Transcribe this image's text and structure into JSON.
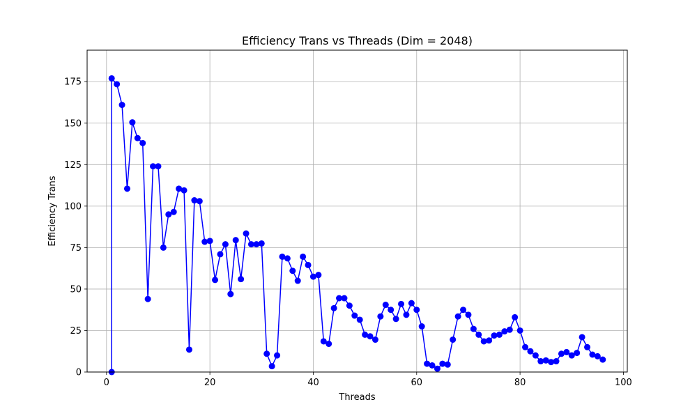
{
  "chart_data": {
    "type": "line",
    "title": "Efficiency Trans vs Threads (Dim = 2048)",
    "xlabel": "Threads",
    "ylabel": "Efficiency Trans",
    "xlim": [
      -3.75,
      100.75
    ],
    "ylim": [
      0,
      194
    ],
    "xticks": [
      0,
      20,
      40,
      60,
      80,
      100
    ],
    "yticks": [
      0,
      25,
      50,
      75,
      100,
      125,
      150,
      175
    ],
    "grid": true,
    "series": [
      {
        "color": "#0000ff",
        "marker": "circle",
        "x": [
          1,
          1,
          2,
          3,
          4,
          5,
          6,
          7,
          8,
          9,
          10,
          11,
          12,
          13,
          14,
          15,
          16,
          17,
          18,
          19,
          20,
          21,
          22,
          23,
          24,
          25,
          26,
          27,
          28,
          29,
          30,
          31,
          32,
          33,
          34,
          35,
          36,
          37,
          38,
          39,
          40,
          41,
          42,
          43,
          44,
          45,
          46,
          47,
          48,
          49,
          50,
          51,
          52,
          53,
          54,
          55,
          56,
          57,
          58,
          59,
          60,
          61,
          62,
          63,
          64,
          65,
          66,
          67,
          68,
          69,
          70,
          71,
          72,
          73,
          74,
          75,
          76,
          77,
          78,
          79,
          80,
          81,
          82,
          83,
          84,
          85,
          86,
          87,
          88,
          89,
          90,
          91,
          92,
          93,
          94,
          95,
          96
        ],
        "y": [
          0,
          177,
          173.5,
          161,
          110.5,
          150.5,
          141,
          138,
          44,
          124,
          124,
          75,
          95,
          96.5,
          110.5,
          109.5,
          13.5,
          103.5,
          103,
          78.5,
          79,
          55.5,
          71,
          77,
          47,
          79.5,
          56,
          83.5,
          77,
          77,
          77.5,
          11,
          3.5,
          10,
          69.5,
          68.5,
          61,
          55,
          69.5,
          64.5,
          57.5,
          58.5,
          18.5,
          17,
          38.5,
          44.5,
          44.5,
          40,
          34,
          31.5,
          22.5,
          21.5,
          19.5,
          33.5,
          40.5,
          37.5,
          32,
          41,
          34.5,
          41.5,
          37.5,
          27.5,
          5,
          4,
          2,
          5,
          4.5,
          19.5,
          33.5,
          37.5,
          34.5,
          26,
          22.5,
          18.5,
          19,
          22,
          22.5,
          24.5,
          25.5,
          33,
          25,
          15,
          12.5,
          10,
          6.5,
          7,
          6,
          6.5,
          11,
          12,
          10,
          11.5,
          21,
          15,
          10.5,
          9.5,
          7.5
        ]
      }
    ]
  }
}
